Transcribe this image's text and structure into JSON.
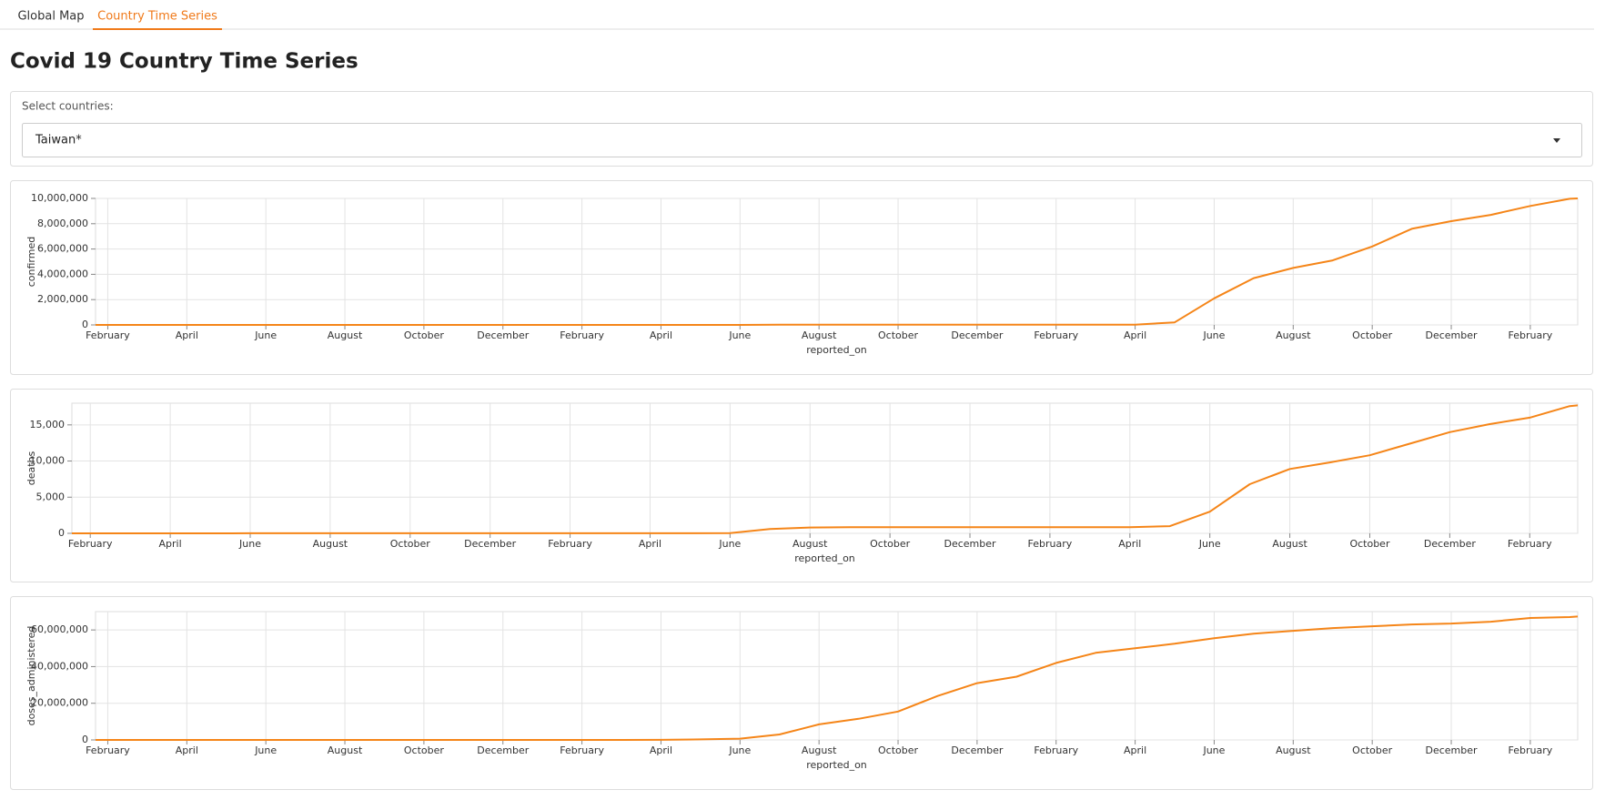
{
  "tabs": [
    "Global Map",
    "Country Time Series"
  ],
  "title": "Covid 19 Country Time Series",
  "select": {
    "label": "Select countries:",
    "value": "Taiwan*"
  },
  "chart_data": [
    {
      "type": "line",
      "xlabel": "reported_on",
      "ylabel": "confirmed",
      "color": "#f58518",
      "grid": true,
      "x": [
        -0.31,
        0,
        1,
        2,
        3,
        4,
        5,
        6,
        7,
        8,
        9,
        10,
        11,
        12,
        13,
        14,
        15,
        16,
        17,
        18,
        19,
        20,
        21,
        22,
        23,
        24,
        25,
        26,
        27,
        28,
        29,
        30,
        31,
        32,
        33,
        34,
        35,
        36,
        37,
        37.2
      ],
      "values": [
        1,
        10,
        39,
        322,
        429,
        441,
        446,
        467,
        487,
        503,
        523,
        547,
        607,
        797,
        942,
        955,
        1030,
        2500,
        14900,
        15800,
        16000,
        16300,
        16500,
        16900,
        17900,
        19400,
        21500,
        24100,
        200000,
        2100000,
        3700000,
        4500000,
        5100000,
        6200000,
        7600000,
        8200000,
        8700000,
        9400000,
        9970000,
        10000000
      ],
      "xlim": [
        -0.31,
        37.2
      ],
      "xticks": [
        {
          "value": 0,
          "label": "February"
        },
        {
          "value": 2,
          "label": "April"
        },
        {
          "value": 4,
          "label": "June"
        },
        {
          "value": 6,
          "label": "August"
        },
        {
          "value": 8,
          "label": "October"
        },
        {
          "value": 10,
          "label": "December"
        },
        {
          "value": 12,
          "label": "February"
        },
        {
          "value": 14,
          "label": "April"
        },
        {
          "value": 16,
          "label": "June"
        },
        {
          "value": 18,
          "label": "August"
        },
        {
          "value": 20,
          "label": "October"
        },
        {
          "value": 22,
          "label": "December"
        },
        {
          "value": 24,
          "label": "February"
        },
        {
          "value": 26,
          "label": "April"
        },
        {
          "value": 28,
          "label": "June"
        },
        {
          "value": 30,
          "label": "August"
        },
        {
          "value": 32,
          "label": "October"
        },
        {
          "value": 34,
          "label": "December"
        },
        {
          "value": 36,
          "label": "February"
        }
      ],
      "ylim": [
        0,
        10000000
      ],
      "yticks": [
        0,
        {
          "value": 2000000,
          "label": "2,000,000"
        },
        {
          "value": 4000000,
          "label": "4,000,000"
        },
        {
          "value": 6000000,
          "label": "6,000,000"
        },
        {
          "value": 8000000,
          "label": "8,000,000"
        },
        {
          "value": 10000000,
          "label": "10,000,000"
        }
      ]
    },
    {
      "type": "line",
      "xlabel": "reported_on",
      "ylabel": "deaths",
      "color": "#f58518",
      "grid": true,
      "x": [
        -0.46,
        0,
        1,
        2,
        3,
        4,
        5,
        6,
        7,
        8,
        9,
        10,
        11,
        12,
        13,
        14,
        15,
        16,
        17,
        18,
        19,
        20,
        21,
        22,
        23,
        24,
        25,
        26,
        27,
        28,
        29,
        30,
        31,
        32,
        33,
        34,
        35,
        36,
        37,
        37.2
      ],
      "values": [
        0,
        0,
        1,
        5,
        6,
        7,
        7,
        7,
        7,
        7,
        7,
        7,
        7,
        9,
        10,
        11,
        12,
        20,
        600,
        800,
        840,
        845,
        847,
        848,
        849,
        850,
        852,
        853,
        1000,
        3000,
        6800,
        8900,
        9800,
        10800,
        12400,
        14000,
        15100,
        16000,
        17600,
        17700
      ],
      "xlim": [
        -0.46,
        37.2
      ],
      "xticks": [
        {
          "value": 0,
          "label": "February"
        },
        {
          "value": 2,
          "label": "April"
        },
        {
          "value": 4,
          "label": "June"
        },
        {
          "value": 6,
          "label": "August"
        },
        {
          "value": 8,
          "label": "October"
        },
        {
          "value": 10,
          "label": "December"
        },
        {
          "value": 12,
          "label": "February"
        },
        {
          "value": 14,
          "label": "April"
        },
        {
          "value": 16,
          "label": "June"
        },
        {
          "value": 18,
          "label": "August"
        },
        {
          "value": 20,
          "label": "October"
        },
        {
          "value": 22,
          "label": "December"
        },
        {
          "value": 24,
          "label": "February"
        },
        {
          "value": 26,
          "label": "April"
        },
        {
          "value": 28,
          "label": "June"
        },
        {
          "value": 30,
          "label": "August"
        },
        {
          "value": 32,
          "label": "October"
        },
        {
          "value": 34,
          "label": "December"
        },
        {
          "value": 36,
          "label": "February"
        }
      ],
      "ylim": [
        0,
        18000
      ],
      "yticks": [
        0,
        {
          "value": 5000,
          "label": "5,000"
        },
        {
          "value": 10000,
          "label": "10,000"
        },
        {
          "value": 15000,
          "label": "15,000"
        }
      ]
    },
    {
      "type": "line",
      "xlabel": "reported_on",
      "ylabel": "doses_administered",
      "color": "#f58518",
      "grid": true,
      "x": [
        -0.31,
        0,
        1,
        2,
        3,
        4,
        5,
        6,
        7,
        8,
        9,
        10,
        11,
        12,
        13,
        14,
        15,
        16,
        17,
        18,
        19,
        20,
        21,
        22,
        23,
        24,
        25,
        26,
        27,
        28,
        29,
        30,
        31,
        32,
        33,
        34,
        35,
        36,
        37,
        37.2
      ],
      "values": [
        0,
        0,
        0,
        0,
        0,
        0,
        0,
        0,
        0,
        0,
        0,
        0,
        0,
        0,
        10000,
        60000,
        300000,
        700000,
        3000000,
        8500000,
        11500000,
        15500000,
        24000000,
        31000000,
        34500000,
        42000000,
        47500000,
        50000000,
        52500000,
        55500000,
        58000000,
        59500000,
        61000000,
        62000000,
        63000000,
        63500000,
        64500000,
        66500000,
        67000000,
        67300000
      ],
      "xlim": [
        -0.31,
        37.2
      ],
      "xticks": [
        {
          "value": 0,
          "label": "February"
        },
        {
          "value": 2,
          "label": "April"
        },
        {
          "value": 4,
          "label": "June"
        },
        {
          "value": 6,
          "label": "August"
        },
        {
          "value": 8,
          "label": "October"
        },
        {
          "value": 10,
          "label": "December"
        },
        {
          "value": 12,
          "label": "February"
        },
        {
          "value": 14,
          "label": "April"
        },
        {
          "value": 16,
          "label": "June"
        },
        {
          "value": 18,
          "label": "August"
        },
        {
          "value": 20,
          "label": "October"
        },
        {
          "value": 22,
          "label": "December"
        },
        {
          "value": 24,
          "label": "February"
        },
        {
          "value": 26,
          "label": "April"
        },
        {
          "value": 28,
          "label": "June"
        },
        {
          "value": 30,
          "label": "August"
        },
        {
          "value": 32,
          "label": "October"
        },
        {
          "value": 34,
          "label": "December"
        },
        {
          "value": 36,
          "label": "February"
        }
      ],
      "ylim": [
        0,
        70000000
      ],
      "yticks": [
        0,
        {
          "value": 20000000,
          "label": "20,000,000"
        },
        {
          "value": 40000000,
          "label": "40,000,000"
        },
        {
          "value": 60000000,
          "label": "60,000,000"
        }
      ]
    }
  ]
}
